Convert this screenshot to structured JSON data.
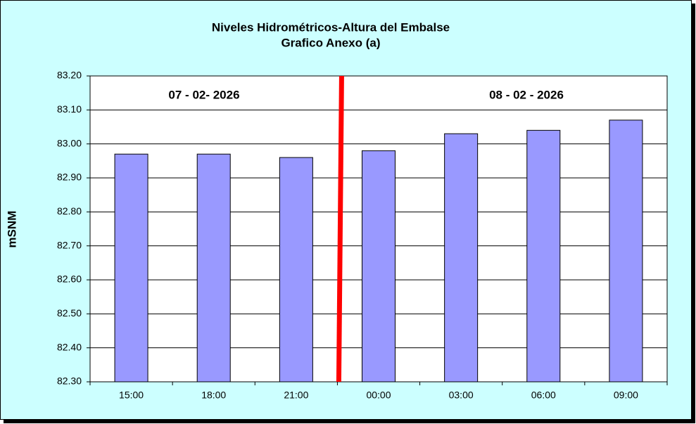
{
  "chart_data": {
    "type": "bar",
    "title": "Niveles Hidrométricos-Altura del Embalse",
    "subtitle": "Grafico Anexo (a)",
    "y_label": "mSNM",
    "annotations": [
      "07 - 02- 2026",
      "08 - 02 - 2026"
    ],
    "categories": [
      "15:00",
      "18:00",
      "21:00",
      "00:00",
      "03:00",
      "06:00",
      "09:00"
    ],
    "values": [
      82.97,
      82.97,
      82.96,
      82.98,
      83.03,
      83.04,
      83.07
    ],
    "color": "#9999ff",
    "ylim": [
      82.3,
      83.2
    ],
    "yticks": [
      {
        "value": 82.3,
        "label": "82.30"
      },
      {
        "value": 82.4,
        "label": "82.40"
      },
      {
        "value": 82.5,
        "label": "82.50"
      },
      {
        "value": 82.6,
        "label": "82.60"
      },
      {
        "value": 82.7,
        "label": "82.70"
      },
      {
        "value": 82.8,
        "label": "82.80"
      },
      {
        "value": 82.9,
        "label": "82.90"
      },
      {
        "value": 83.0,
        "label": "83.00"
      },
      {
        "value": 83.1,
        "label": "83.10"
      },
      {
        "value": 83.2,
        "label": "83.20"
      }
    ],
    "grid": true
  }
}
